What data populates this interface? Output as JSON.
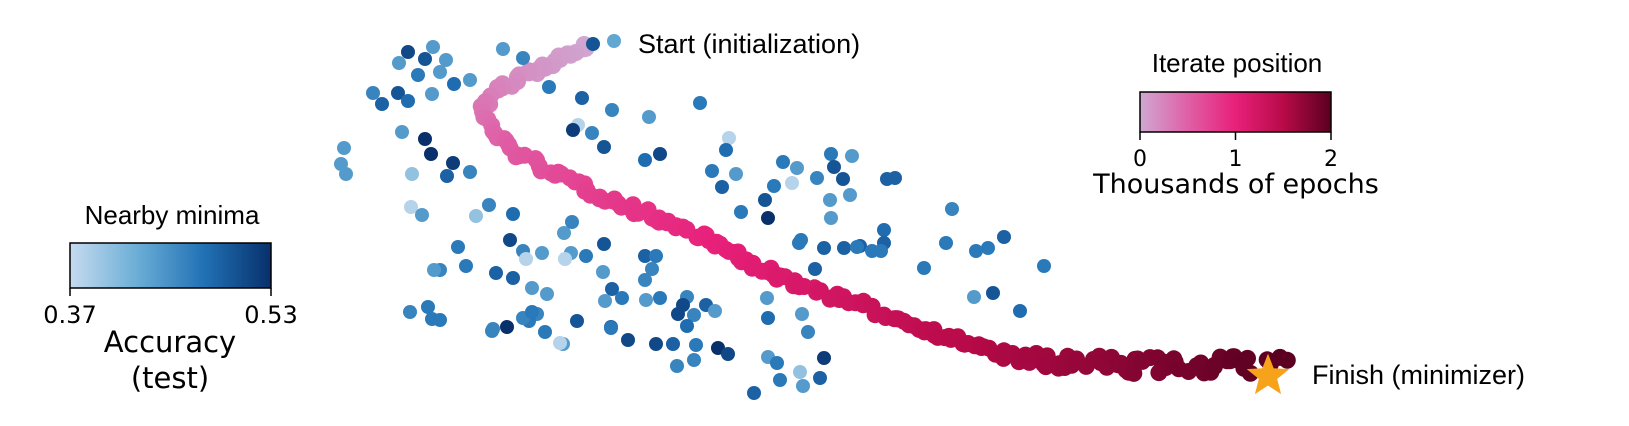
{
  "chart_data": {
    "type": "scatter",
    "annotations": {
      "start": "Start (initialization)",
      "finish": "Finish (minimizer)"
    },
    "colorbars": [
      {
        "title": "Nearby minima",
        "label_line1": "Accuracy",
        "label_line2": "(test)",
        "ticks": [
          "0.37",
          "0.53"
        ],
        "range": [
          0.37,
          0.53
        ],
        "colors": [
          "#c6dbef",
          "#6baed6",
          "#2171b5",
          "#08306b"
        ]
      },
      {
        "title": "Iterate position",
        "label": "Thousands of epochs",
        "ticks": [
          "0",
          "1",
          "2"
        ],
        "range": [
          0,
          2
        ],
        "colors": [
          "#cfa8d2",
          "#df60a6",
          "#e8207a",
          "#b80a48",
          "#5a0020"
        ]
      }
    ],
    "series": [
      {
        "kind": "nearby_minima",
        "points": [
          [
            614,
            41,
            0.43
          ],
          [
            593,
            44,
            0.5
          ],
          [
            408,
            52,
            0.51
          ],
          [
            433,
            47,
            0.44
          ],
          [
            399,
            63,
            0.44
          ],
          [
            425,
            59,
            0.5
          ],
          [
            440,
            72,
            0.44
          ],
          [
            418,
            75,
            0.47
          ],
          [
            470,
            80,
            0.44
          ],
          [
            446,
            60,
            0.44
          ],
          [
            503,
            49,
            0.44
          ],
          [
            523,
            58,
            0.46
          ],
          [
            373,
            93,
            0.46
          ],
          [
            382,
            104,
            0.49
          ],
          [
            398,
            93,
            0.5
          ],
          [
            408,
            101,
            0.48
          ],
          [
            432,
            94,
            0.44
          ],
          [
            454,
            84,
            0.48
          ],
          [
            549,
            87,
            0.47
          ],
          [
            582,
            98,
            0.49
          ],
          [
            612,
            110,
            0.46
          ],
          [
            649,
            117,
            0.44
          ],
          [
            700,
            103,
            0.47
          ],
          [
            578,
            125,
            0.38
          ],
          [
            573,
            130,
            0.52
          ],
          [
            604,
            147,
            0.5
          ],
          [
            592,
            133,
            0.46
          ],
          [
            402,
            132,
            0.44
          ],
          [
            425,
            139,
            0.53
          ],
          [
            431,
            154,
            0.53
          ],
          [
            453,
            163,
            0.52
          ],
          [
            470,
            172,
            0.46
          ],
          [
            447,
            176,
            0.49
          ],
          [
            412,
            174,
            0.4
          ],
          [
            344,
            148,
            0.44
          ],
          [
            341,
            164,
            0.44
          ],
          [
            346,
            174,
            0.44
          ],
          [
            729,
            138,
            0.38
          ],
          [
            726,
            150,
            0.48
          ],
          [
            660,
            154,
            0.51
          ],
          [
            645,
            160,
            0.48
          ],
          [
            712,
            171,
            0.47
          ],
          [
            722,
            187,
            0.49
          ],
          [
            736,
            174,
            0.44
          ],
          [
            783,
            162,
            0.47
          ],
          [
            797,
            168,
            0.44
          ],
          [
            817,
            178,
            0.46
          ],
          [
            792,
            183,
            0.38
          ],
          [
            831,
            154,
            0.47
          ],
          [
            852,
            156,
            0.44
          ],
          [
            834,
            167,
            0.5
          ],
          [
            843,
            179,
            0.5
          ],
          [
            850,
            195,
            0.44
          ],
          [
            887,
            179,
            0.49
          ],
          [
            895,
            178,
            0.49
          ],
          [
            774,
            186,
            0.47
          ],
          [
            741,
            212,
            0.47
          ],
          [
            765,
            200,
            0.5
          ],
          [
            768,
            218,
            0.53
          ],
          [
            830,
            200,
            0.44
          ],
          [
            831,
            218,
            0.44
          ],
          [
            411,
            207,
            0.38
          ],
          [
            422,
            215,
            0.44
          ],
          [
            476,
            216,
            0.4
          ],
          [
            489,
            205,
            0.46
          ],
          [
            513,
            214,
            0.48
          ],
          [
            510,
            240,
            0.51
          ],
          [
            523,
            251,
            0.46
          ],
          [
            526,
            259,
            0.38
          ],
          [
            564,
            233,
            0.44
          ],
          [
            572,
            222,
            0.46
          ],
          [
            571,
            253,
            0.44
          ],
          [
            586,
            256,
            0.47
          ],
          [
            604,
            244,
            0.5
          ],
          [
            565,
            259,
            0.38
          ],
          [
            603,
            272,
            0.44
          ],
          [
            645,
            256,
            0.49
          ],
          [
            656,
            256,
            0.47
          ],
          [
            652,
            269,
            0.46
          ],
          [
            645,
            280,
            0.46
          ],
          [
            440,
            270,
            0.46
          ],
          [
            434,
            270,
            0.44
          ],
          [
            458,
            247,
            0.47
          ],
          [
            466,
            266,
            0.47
          ],
          [
            496,
            273,
            0.49
          ],
          [
            513,
            278,
            0.49
          ],
          [
            532,
            288,
            0.44
          ],
          [
            547,
            294,
            0.44
          ],
          [
            537,
            314,
            0.46
          ],
          [
            529,
            321,
            0.47
          ],
          [
            612,
            289,
            0.49
          ],
          [
            622,
            298,
            0.47
          ],
          [
            605,
            301,
            0.44
          ],
          [
            646,
            300,
            0.44
          ],
          [
            660,
            298,
            0.47
          ],
          [
            687,
            297,
            0.46
          ],
          [
            683,
            305,
            0.51
          ],
          [
            694,
            315,
            0.46
          ],
          [
            706,
            305,
            0.49
          ],
          [
            715,
            311,
            0.44
          ],
          [
            678,
            314,
            0.51
          ],
          [
            687,
            326,
            0.48
          ],
          [
            799,
            243,
            0.47
          ],
          [
            801,
            240,
            0.47
          ],
          [
            824,
            248,
            0.49
          ],
          [
            844,
            248,
            0.49
          ],
          [
            860,
            246,
            0.49
          ],
          [
            884,
            230,
            0.48
          ],
          [
            884,
            243,
            0.49
          ],
          [
            872,
            251,
            0.47
          ],
          [
            857,
            247,
            0.47
          ],
          [
            881,
            251,
            0.47
          ],
          [
            952,
            209,
            0.46
          ],
          [
            946,
            243,
            0.47
          ],
          [
            976,
            251,
            0.47
          ],
          [
            988,
            248,
            0.47
          ],
          [
            1004,
            237,
            0.49
          ],
          [
            924,
            268,
            0.47
          ],
          [
            1044,
            266,
            0.47
          ],
          [
            974,
            297,
            0.44
          ],
          [
            993,
            293,
            0.5
          ],
          [
            1020,
            311,
            0.48
          ],
          [
            815,
            269,
            0.49
          ],
          [
            767,
            298,
            0.44
          ],
          [
            768,
            318,
            0.48
          ],
          [
            802,
            314,
            0.44
          ],
          [
            808,
            332,
            0.46
          ],
          [
            410,
            312,
            0.46
          ],
          [
            428,
            307,
            0.47
          ],
          [
            432,
            319,
            0.47
          ],
          [
            440,
            320,
            0.47
          ],
          [
            493,
            329,
            0.46
          ],
          [
            507,
            327,
            0.53
          ],
          [
            523,
            318,
            0.46
          ],
          [
            532,
            312,
            0.47
          ],
          [
            545,
            332,
            0.47
          ],
          [
            563,
            344,
            0.44
          ],
          [
            577,
            321,
            0.5
          ],
          [
            611,
            327,
            0.49
          ],
          [
            628,
            340,
            0.51
          ],
          [
            656,
            344,
            0.51
          ],
          [
            673,
            344,
            0.49
          ],
          [
            696,
            345,
            0.47
          ],
          [
            718,
            348,
            0.53
          ],
          [
            677,
            366,
            0.46
          ],
          [
            694,
            360,
            0.46
          ],
          [
            728,
            354,
            0.51
          ],
          [
            768,
            357,
            0.44
          ],
          [
            777,
            363,
            0.47
          ],
          [
            800,
            372,
            0.4
          ],
          [
            820,
            378,
            0.49
          ],
          [
            824,
            358,
            0.52
          ],
          [
            780,
            380,
            0.47
          ],
          [
            803,
            386,
            0.44
          ],
          [
            754,
            393,
            0.49
          ],
          [
            542,
            253,
            0.44
          ],
          [
            560,
            343,
            0.38
          ],
          [
            611,
            328,
            0.47
          ],
          [
            492,
            331,
            0.46
          ]
        ]
      },
      {
        "kind": "iterate_trajectory",
        "path_points": [
          [
            590,
            45,
            0
          ],
          [
            565,
            56,
            0.06
          ],
          [
            530,
            72,
            0.15
          ],
          [
            498,
            90,
            0.25
          ],
          [
            482,
            108,
            0.35
          ],
          [
            490,
            130,
            0.45
          ],
          [
            515,
            152,
            0.55
          ],
          [
            552,
            172,
            0.65
          ],
          [
            590,
            190,
            0.75
          ],
          [
            625,
            205,
            0.82
          ],
          [
            665,
            222,
            0.9
          ],
          [
            705,
            238,
            0.98
          ],
          [
            740,
            258,
            1.05
          ],
          [
            775,
            276,
            1.12
          ],
          [
            815,
            290,
            1.2
          ],
          [
            855,
            303,
            1.28
          ],
          [
            895,
            318,
            1.36
          ],
          [
            935,
            333,
            1.44
          ],
          [
            980,
            348,
            1.52
          ],
          [
            1030,
            362,
            1.6
          ],
          [
            1080,
            364,
            1.68
          ],
          [
            1130,
            365,
            1.76
          ],
          [
            1180,
            367,
            1.84
          ],
          [
            1225,
            362,
            1.92
          ],
          [
            1262,
            368,
            1.98
          ],
          [
            1285,
            365,
            2.0
          ]
        ]
      }
    ],
    "finish_marker": "star"
  }
}
